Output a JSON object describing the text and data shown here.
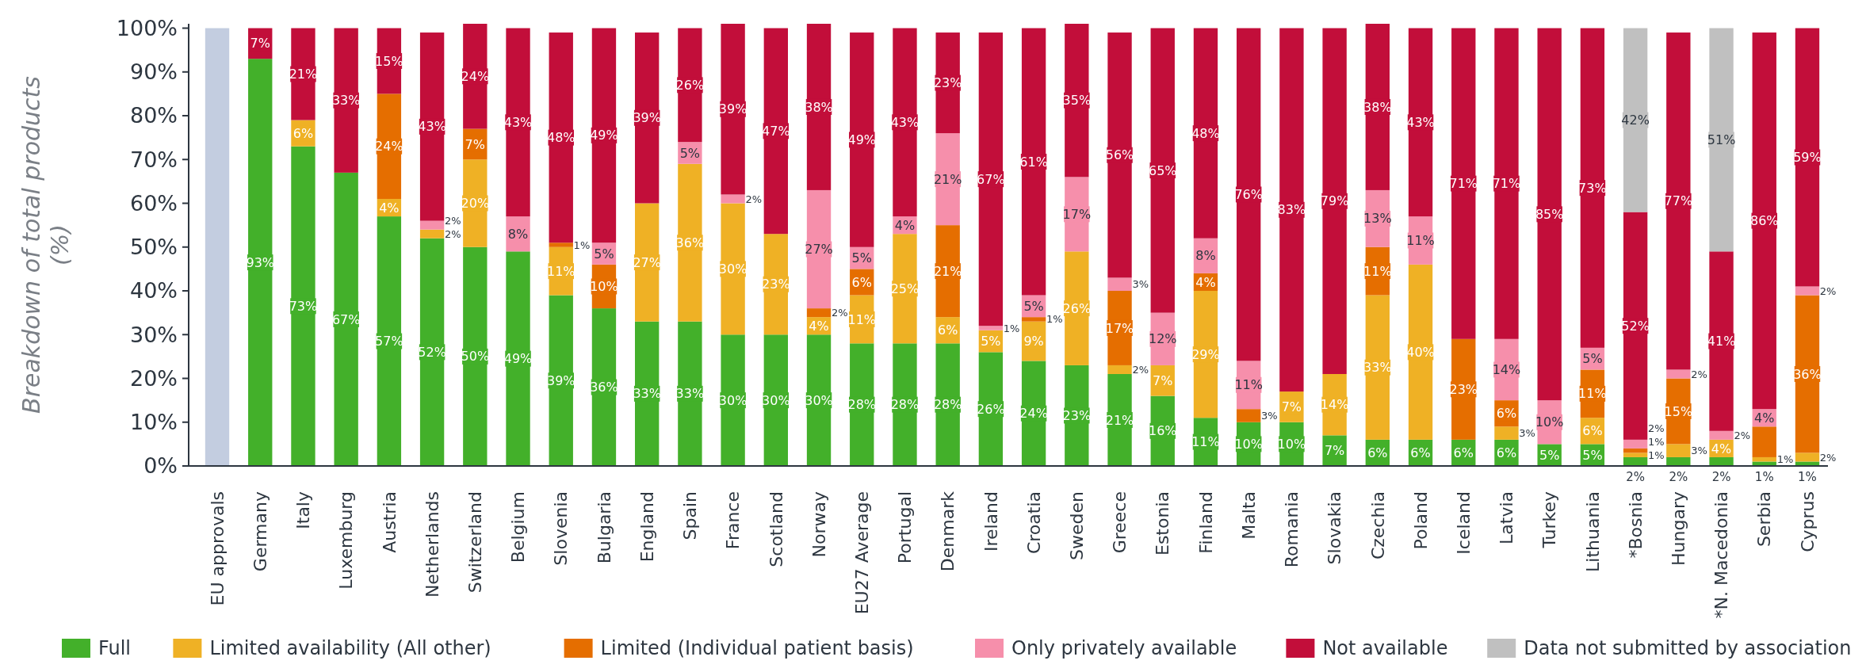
{
  "chart_data": {
    "type": "bar",
    "stacked": true,
    "ylabel": "Breakdown of total products (%)",
    "ylim": [
      0,
      101
    ],
    "yticks": [
      {
        "value": 0,
        "label": "0%"
      },
      {
        "value": 10,
        "label": "10%"
      },
      {
        "value": 20,
        "label": "20%"
      },
      {
        "value": 30,
        "label": "30%"
      },
      {
        "value": 40,
        "label": "40%"
      },
      {
        "value": 50,
        "label": "50%"
      },
      {
        "value": 60,
        "label": "60%"
      },
      {
        "value": 70,
        "label": "70%"
      },
      {
        "value": 80,
        "label": "80%"
      },
      {
        "value": 90,
        "label": "90%"
      },
      {
        "value": 100,
        "label": "100%"
      }
    ],
    "grid": false,
    "legend": "bottom",
    "categories": [
      "EU approvals",
      "Germany",
      "Italy",
      "Luxemburg",
      "Austria",
      "Netherlands",
      "Switzerland",
      "Belgium",
      "Slovenia",
      "Bulgaria",
      "England",
      "Spain",
      "France",
      "Scotland",
      "Norway",
      "EU27 Average",
      "Portugal",
      "Denmark",
      "Ireland",
      "Croatia",
      "Sweden",
      "Greece",
      "Estonia",
      "Finland",
      "Malta",
      "Romania",
      "Slovakia",
      "Czechia",
      "Poland",
      "Iceland",
      "Latvia",
      "Turkey",
      "Lithuania",
      "*Bosnia",
      "Hungary",
      "*N. Macedonia",
      "Serbia",
      "Cyprus"
    ],
    "series": [
      {
        "color": "#c3cde0",
        "values": [
          100,
          null,
          null,
          null,
          null,
          null,
          null,
          null,
          null,
          null,
          null,
          null,
          null,
          null,
          null,
          null,
          null,
          null,
          null,
          null,
          null,
          null,
          null,
          null,
          null,
          null,
          null,
          null,
          null,
          null,
          null,
          null,
          null,
          null,
          null,
          null,
          null,
          null
        ],
        "value_labels": [
          null,
          null,
          null,
          null,
          null,
          null,
          null,
          null,
          null,
          null,
          null,
          null,
          null,
          null,
          null,
          null,
          null,
          null,
          null,
          null,
          null,
          null,
          null,
          null,
          null,
          null,
          null,
          null,
          null,
          null,
          null,
          null,
          null,
          null,
          null,
          null,
          null,
          null
        ]
      },
      {
        "name": "Full",
        "color": "#43b02a",
        "values": [
          null,
          93,
          73,
          67,
          57,
          52,
          50,
          49,
          39,
          36,
          33,
          33,
          30,
          30,
          30,
          28,
          28,
          28,
          26,
          24,
          23,
          21,
          16,
          11,
          10,
          10,
          7,
          6,
          6,
          6,
          6,
          5,
          5,
          2,
          2,
          2,
          1,
          1
        ],
        "value_labels": [
          null,
          "93%",
          "73%",
          "67%",
          "57%",
          "52%",
          "50%",
          "49%",
          "39%",
          "36%",
          "33%",
          "33%",
          "30%",
          "30%",
          "30%",
          "28%",
          "28%",
          "28%",
          "26%",
          "24%",
          "23%",
          "21%",
          "16%",
          "11%",
          "10%",
          "10%",
          "7%",
          "6%",
          "6%",
          "6%",
          "6%",
          "5%",
          "5%",
          "2%",
          "2%",
          "2%",
          "1%",
          "1%"
        ]
      },
      {
        "name": "Limited availability (All other)",
        "color": "#efb125",
        "values": [
          null,
          null,
          6,
          null,
          4,
          2,
          20,
          null,
          11,
          null,
          27,
          36,
          30,
          23,
          4,
          11,
          25,
          6,
          5,
          9,
          26,
          2,
          7,
          29,
          null,
          7,
          14,
          33,
          40,
          null,
          3,
          null,
          6,
          1,
          3,
          4,
          1,
          2
        ],
        "value_labels": [
          null,
          null,
          "6%",
          null,
          "4%",
          "2%",
          "20%",
          null,
          "11%",
          null,
          "27%",
          "36%",
          "30%",
          "23%",
          "4%",
          "11%",
          "25%",
          "6%",
          "5%",
          "9%",
          "26%",
          "2%",
          "7%",
          "29%",
          null,
          "7%",
          "14%",
          "33%",
          "40%",
          null,
          "3%",
          null,
          "6%",
          "1%",
          "3%",
          "4%",
          "1%",
          "2%"
        ]
      },
      {
        "name": "Limited (Individual patient basis)",
        "color": "#e56e00",
        "values": [
          null,
          null,
          null,
          null,
          24,
          null,
          7,
          null,
          1,
          10,
          null,
          null,
          null,
          null,
          2,
          6,
          null,
          21,
          null,
          1,
          null,
          17,
          null,
          4,
          3,
          null,
          null,
          11,
          null,
          23,
          6,
          null,
          11,
          1,
          15,
          null,
          7,
          36
        ],
        "value_labels": [
          null,
          null,
          null,
          null,
          "24%",
          null,
          "7%",
          null,
          "1%",
          "10%",
          null,
          null,
          null,
          null,
          "2%",
          "6%",
          null,
          "21%",
          null,
          "1%",
          null,
          "17%",
          null,
          "4%",
          "3%",
          null,
          null,
          "11%",
          null,
          "23%",
          "6%",
          null,
          "11%",
          "1%",
          "15%",
          null,
          null,
          "36%"
        ]
      },
      {
        "name": "Only privately available",
        "color": "#f68fab",
        "values": [
          null,
          null,
          null,
          null,
          null,
          2,
          null,
          8,
          null,
          5,
          null,
          5,
          2,
          null,
          27,
          5,
          4,
          21,
          1,
          5,
          17,
          3,
          12,
          8,
          11,
          null,
          null,
          13,
          11,
          null,
          14,
          10,
          5,
          2,
          2,
          2,
          4,
          2
        ],
        "value_labels": [
          null,
          null,
          null,
          null,
          null,
          "2%",
          null,
          "8%",
          null,
          "5%",
          null,
          "5%",
          "2%",
          null,
          "27%",
          "5%",
          "4%",
          "21%",
          "1%",
          "5%",
          "17%",
          "3%",
          "12%",
          "8%",
          "11%",
          null,
          null,
          "13%",
          "11%",
          null,
          "14%",
          "10%",
          "5%",
          "2%",
          "2%",
          "2%",
          "4%",
          "2%"
        ]
      },
      {
        "name": "Not available",
        "color": "#c20e3a",
        "values": [
          null,
          7,
          21,
          33,
          15,
          43,
          24,
          43,
          48,
          49,
          39,
          26,
          39,
          47,
          38,
          49,
          43,
          23,
          67,
          61,
          35,
          56,
          65,
          48,
          76,
          83,
          79,
          38,
          43,
          71,
          71,
          85,
          73,
          52,
          77,
          41,
          86,
          59
        ],
        "value_labels": [
          null,
          "7%",
          "21%",
          "33%",
          "15%",
          "43%",
          "24%",
          "43%",
          "48%",
          "49%",
          "39%",
          "26%",
          "39%",
          "47%",
          "38%",
          "49%",
          "43%",
          "23%",
          "67%",
          "61%",
          "35%",
          "56%",
          "65%",
          "48%",
          "76%",
          "83%",
          "79%",
          "38%",
          "43%",
          "71%",
          "71%",
          "85%",
          "73%",
          "52%",
          "77%",
          "41%",
          "86%",
          "59%"
        ]
      },
      {
        "name": "Data not submitted by association",
        "color": "#c0c0c0",
        "values": [
          null,
          null,
          null,
          null,
          null,
          null,
          null,
          null,
          null,
          null,
          null,
          null,
          null,
          null,
          null,
          null,
          null,
          null,
          null,
          null,
          null,
          null,
          null,
          null,
          null,
          null,
          null,
          null,
          null,
          null,
          null,
          null,
          null,
          42,
          null,
          51,
          null,
          null
        ],
        "value_labels": [
          null,
          null,
          null,
          null,
          null,
          null,
          null,
          null,
          null,
          null,
          null,
          null,
          null,
          null,
          null,
          null,
          null,
          null,
          null,
          null,
          null,
          null,
          null,
          null,
          null,
          null,
          null,
          null,
          null,
          null,
          null,
          null,
          null,
          "42%",
          null,
          "51%",
          null,
          null
        ]
      }
    ]
  }
}
